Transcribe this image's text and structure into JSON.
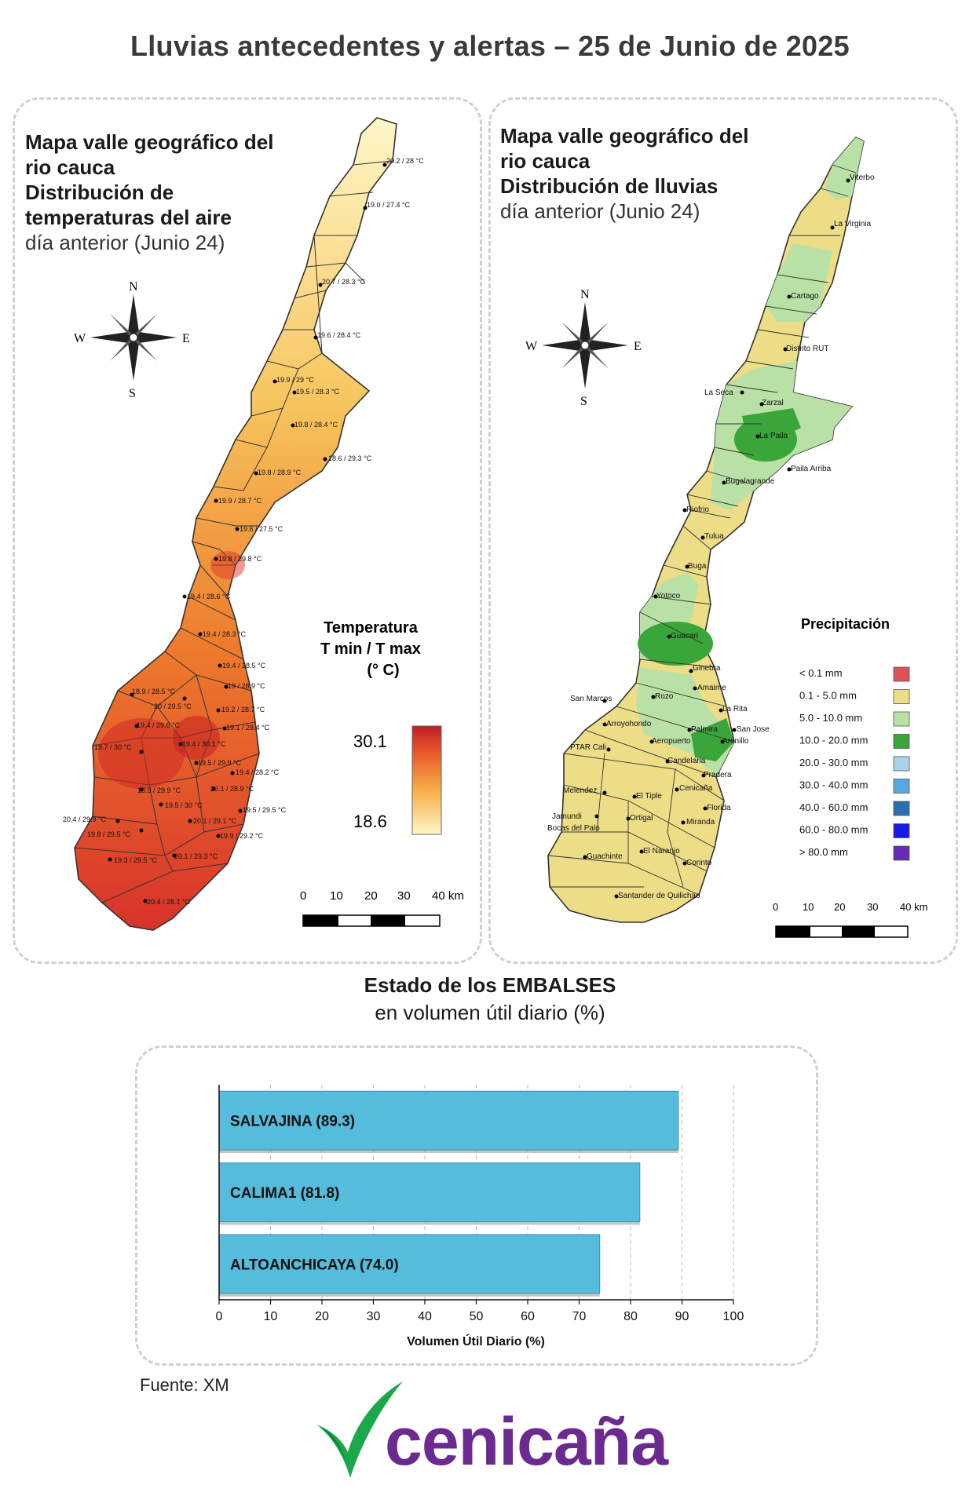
{
  "title": "Lluvias antecedentes y alertas – 25 de Junio de 2025",
  "temp_map": {
    "heading_lines": [
      "Mapa valle geográfico del",
      "rio cauca",
      "Distribución de",
      "temperaturas del aire"
    ],
    "subheading": "día anterior (Junio 24)",
    "legend_title_lines": [
      "Temperatura",
      "T min / T max",
      "(° C)"
    ],
    "legend_max": "30.1",
    "legend_min": "18.6",
    "scale_labels": [
      "0",
      "10",
      "20",
      "30",
      "40 km"
    ],
    "compass": {
      "n": "N",
      "s": "S",
      "e": "E",
      "w": "W"
    },
    "stations": [
      "20.2 / 28 °C",
      "19.0 / 27.4 °C",
      "20.7 / 28.3 °C",
      "19.6 / 28.4 °C",
      "19.9 / 29 °C",
      "19.5 / 28.3 °C",
      "19.8 / 28.4 °C",
      "18.6 / 29.3 °C",
      "19.8 / 28.9 °C",
      "19.9 / 28.7 °C",
      "19.6 / 27.5 °C",
      "19.8 / 29.8 °C",
      "19.4 / 28.6 °C",
      "19.4 / 28.3 °C",
      "19.4 / 28.5 °C",
      "18.9 / 28.5 °C",
      "19 / 28.9 °C",
      "20 / 29.5 °C",
      "19.2 / 28.7 °C",
      "19.4 / 29.6 °C",
      "19.1 / 28.4 °C",
      "19.7 / 30 °C",
      "19.4 / 30.1 °C",
      "19.5 / 29.9 °C",
      "19.4 / 28.2 °C",
      "18.9 / 29.9 °C",
      "20.1 / 28.9 °C",
      "19.5 / 30 °C",
      "19.5 / 29.5 °C",
      "20.4 / 29.9 °C",
      "20.1 / 29.1 °C",
      "19.8 / 29.5 °C",
      "19.9 / 29.2 °C",
      "19.3 / 29.5 °C",
      "20.1 / 29.3 °C",
      "20.4 / 28.1 °C"
    ]
  },
  "rain_map": {
    "heading_lines": [
      "Mapa valle geográfico del",
      "rio cauca"
    ],
    "heading_bold": "Distribución de lluvias",
    "subheading": "día anterior (Junio 24)",
    "legend_title": "Precipitación",
    "legend": [
      {
        "label": "< 0.1 mm",
        "color": "#e0525a"
      },
      {
        "label": "0.1 - 5.0 mm",
        "color": "#ecdd86"
      },
      {
        "label": "5.0 - 10.0 mm",
        "color": "#b9e0a5"
      },
      {
        "label": "10.0 - 20.0 mm",
        "color": "#3aa63a"
      },
      {
        "label": "20.0 - 30.0 mm",
        "color": "#a9d3e6"
      },
      {
        "label": "30.0 - 40.0 mm",
        "color": "#58a8e0"
      },
      {
        "label": "40.0 - 60.0 mm",
        "color": "#2a6fb0"
      },
      {
        "label": "60.0 - 80.0 mm",
        "color": "#1a1ae8"
      },
      {
        "label": "> 80.0 mm",
        "color": "#6a2ab8"
      }
    ],
    "scale_labels": [
      "0",
      "10",
      "20",
      "30",
      "40 km"
    ],
    "compass": {
      "n": "N",
      "s": "S",
      "e": "E",
      "w": "W"
    },
    "cities": [
      "Viterbo",
      "La Virginia",
      "Cartago",
      "Distrito RUT",
      "La Seca",
      "Zarzal",
      "La Paila",
      "Bugalagrande",
      "Paila Arriba",
      "Riofrio",
      "Tulua",
      "Buga",
      "Yotoco",
      "Guacari",
      "Ginebra",
      "Amaime",
      "San Marcos",
      "Rozo",
      "La Rita",
      "Arroyohondo",
      "Palmira",
      "San Jose",
      "PTAR Cali",
      "Aeropuerto",
      "Arenillo",
      "Candelaria",
      "Pradera",
      "Melendez",
      "El Tiple",
      "Cenicaña",
      "Florida",
      "Jamundi",
      "Bocas del Palo",
      "Ortigal",
      "Miranda",
      "El Naranjo",
      "Guachinte",
      "Corinto",
      "Santander de Quilichao"
    ]
  },
  "reservoirs": {
    "heading_bold": "Estado de los EMBALSES",
    "heading": "en volumen útil diario (%)"
  },
  "chart_data": {
    "type": "bar",
    "orientation": "horizontal",
    "categories": [
      "SALVAJINA",
      "CALIMA1",
      "ALTOANCHICAYA"
    ],
    "bar_labels": [
      "SALVAJINA (89.3)",
      "CALIMA1 (81.8)",
      "ALTOANCHICAYA (74.0)"
    ],
    "values": [
      89.3,
      81.8,
      74.0
    ],
    "xlabel": "Volumen Útil Diario (%)",
    "xlim": [
      0,
      100
    ],
    "xticks": [
      0,
      10,
      20,
      30,
      40,
      50,
      60,
      70,
      80,
      90,
      100
    ],
    "bar_color": "#56bcdc",
    "grid": "vertical dashed"
  },
  "source": "Fuente: XM",
  "logo_text": "cenicaña",
  "colors": {
    "accent_purple": "#6a2a8f",
    "logo_green": "#1aa84a"
  }
}
